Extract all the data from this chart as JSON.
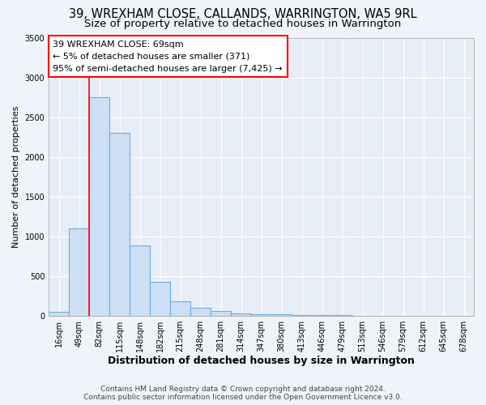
{
  "title": "39, WREXHAM CLOSE, CALLANDS, WARRINGTON, WA5 9RL",
  "subtitle": "Size of property relative to detached houses in Warrington",
  "xlabel": "Distribution of detached houses by size in Warrington",
  "ylabel": "Number of detached properties",
  "bar_values": [
    50,
    1100,
    2750,
    2300,
    880,
    430,
    185,
    100,
    55,
    30,
    20,
    15,
    10,
    5,
    3,
    2,
    1,
    1,
    1,
    1,
    1
  ],
  "bar_labels": [
    "16sqm",
    "49sqm",
    "82sqm",
    "115sqm",
    "148sqm",
    "182sqm",
    "215sqm",
    "248sqm",
    "281sqm",
    "314sqm",
    "347sqm",
    "380sqm",
    "413sqm",
    "446sqm",
    "479sqm",
    "513sqm",
    "546sqm",
    "579sqm",
    "612sqm",
    "645sqm",
    "678sqm"
  ],
  "bar_color": "#ccdff5",
  "bar_edge_color": "#6aaee0",
  "bar_edge_width": 0.8,
  "red_line_x": 1.5,
  "annotation_text_line1": "39 WREXHAM CLOSE: 69sqm",
  "annotation_text_line2": "← 5% of detached houses are smaller (371)",
  "annotation_text_line3": "95% of semi-detached houses are larger (7,425) →",
  "ylim": [
    0,
    3500
  ],
  "yticks": [
    0,
    500,
    1000,
    1500,
    2000,
    2500,
    3000,
    3500
  ],
  "footer_line1": "Contains HM Land Registry data © Crown copyright and database right 2024.",
  "footer_line2": "Contains public sector information licensed under the Open Government Licence v3.0.",
  "background_color": "#f0f4fa",
  "plot_bg_color": "#e8eef8",
  "title_fontsize": 10.5,
  "subtitle_fontsize": 9.5,
  "xlabel_fontsize": 9,
  "ylabel_fontsize": 8,
  "annotation_fontsize": 8,
  "tick_fontsize": 7,
  "footer_fontsize": 6.5
}
